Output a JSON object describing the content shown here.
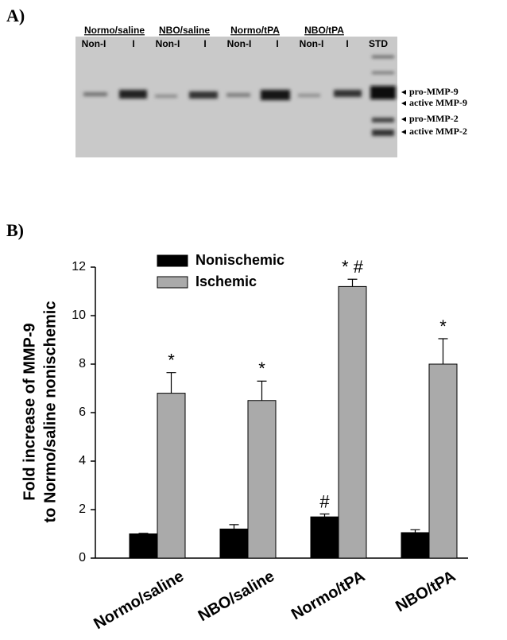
{
  "panel_labels": [
    "A)",
    "B)"
  ],
  "gel": {
    "groups": [
      "Normo/saline",
      "NBO/saline",
      "Normo/tPA",
      "NBO/tPA"
    ],
    "lanes": [
      "Non-I",
      "I",
      "Non-I",
      "I",
      "Non-I",
      "I",
      "Non-I",
      "I",
      "STD"
    ],
    "bands": [
      "pro-MMP-9",
      "active MMP-9",
      "pro-MMP-2",
      "active MMP-2"
    ]
  },
  "chart_data": {
    "type": "bar",
    "ylabel": [
      "Fold increase of MMP-9",
      "to Normo/saline nonischemic"
    ],
    "categories": [
      "Normo/saline",
      "NBO/saline",
      "Normo/tPA",
      "NBO/tPA"
    ],
    "series": [
      {
        "name": "Nonischemic",
        "color": "#000000",
        "values": [
          1.0,
          1.2,
          1.7,
          1.05
        ],
        "errors": [
          0.02,
          0.18,
          0.12,
          0.12
        ],
        "markers": [
          null,
          null,
          "#",
          null
        ]
      },
      {
        "name": "Ischemic",
        "color": "#aaaaaa",
        "values": [
          6.8,
          6.5,
          11.2,
          8.0
        ],
        "errors": [
          0.85,
          0.8,
          0.3,
          1.05
        ],
        "markers": [
          "*",
          "*",
          "* #",
          "*"
        ]
      }
    ],
    "ylim": [
      0,
      12
    ],
    "yticks": [
      0,
      2,
      4,
      6,
      8,
      10,
      12
    ],
    "legend": "upper center",
    "grid": false
  }
}
